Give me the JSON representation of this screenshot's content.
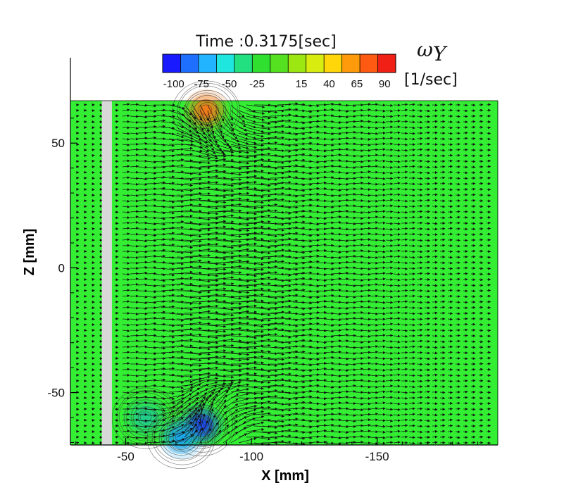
{
  "chart_data": {
    "type": "heatmap",
    "title": "Time :0.3175[sec]",
    "xlabel": "X [mm]",
    "ylabel": "Z [mm]",
    "xlim": [
      -28,
      -198
    ],
    "ylim": [
      -71,
      67
    ],
    "x_ticks": [
      -50,
      -100,
      -150
    ],
    "y_ticks": [
      50,
      0,
      -50
    ],
    "colorbar": {
      "quantity": "ω",
      "subscript": "Y",
      "unit": "[1/sec]",
      "range": [
        -110,
        100
      ],
      "tick_values": [
        -100,
        -75,
        -50,
        -25,
        15,
        40,
        65,
        90
      ],
      "tick_labels": [
        "-100",
        "-75",
        "-50",
        "-25",
        "15",
        "40",
        "65",
        "90"
      ],
      "colors": [
        "#1a1aff",
        "#1f6fff",
        "#22b4ff",
        "#20e6e0",
        "#22e080",
        "#30e030",
        "#55e020",
        "#9ce612",
        "#d8ec10",
        "#ffd60a",
        "#ff9a0a",
        "#ff5a12",
        "#f02016"
      ]
    },
    "background_value_color": "#33ee33",
    "vortices": [
      {
        "x": -82,
        "z": 63,
        "value": 70,
        "color": "#ee7a1a",
        "sign": "positive"
      },
      {
        "x": -80,
        "z": -63,
        "value": -75,
        "color": "#1a4ae8",
        "sign": "negative"
      },
      {
        "x": -58,
        "z": -60,
        "value": -20,
        "color": "#22cc88",
        "sign": "negative"
      },
      {
        "x": -72,
        "z": -68,
        "value": -40,
        "color": "#1aa8e8",
        "sign": "negative"
      }
    ],
    "obstacle": {
      "label": "",
      "x_range": [
        -40.5,
        -44.5
      ],
      "color": "#d8d8d8"
    },
    "vector_field": true
  }
}
